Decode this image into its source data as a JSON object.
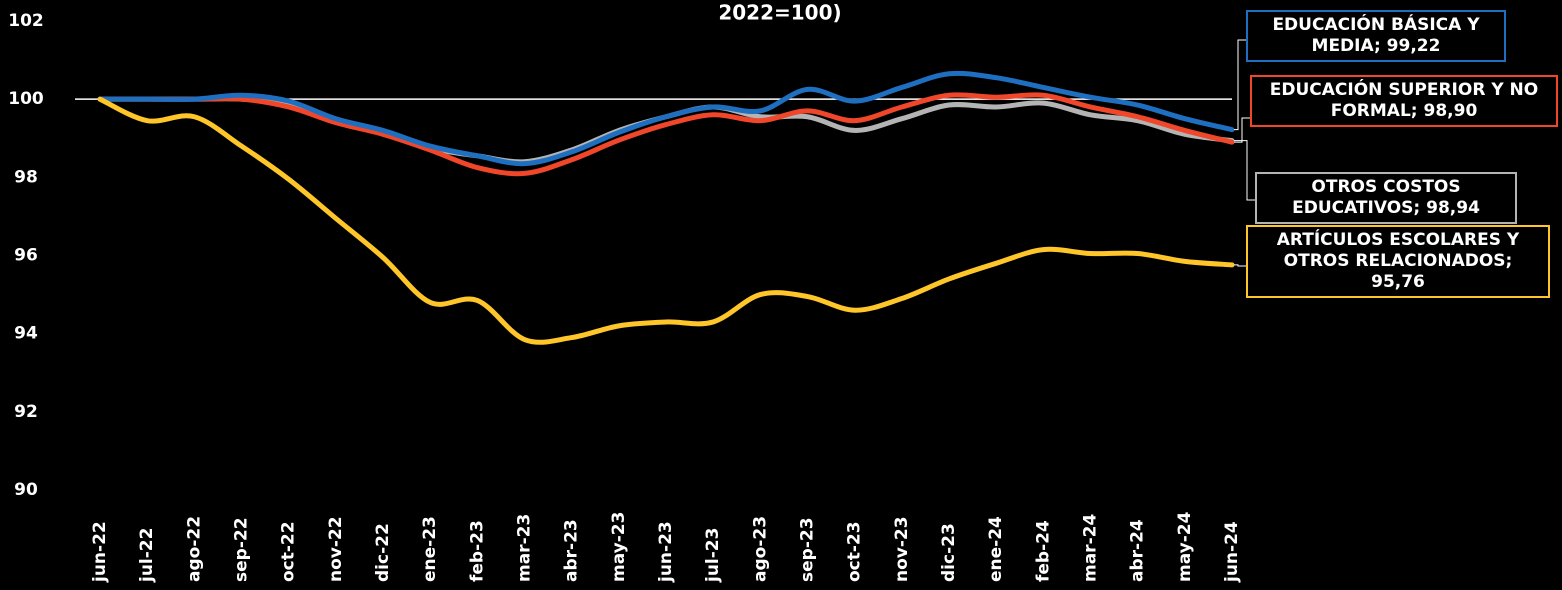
{
  "chart_data": {
    "type": "line",
    "title": "2022=100)",
    "categories": [
      "jun-22",
      "jul-22",
      "ago-22",
      "sep-22",
      "oct-22",
      "nov-22",
      "dic-22",
      "ene-23",
      "feb-23",
      "mar-23",
      "abr-23",
      "may-23",
      "jun-23",
      "jul-23",
      "ago-23",
      "sep-23",
      "oct-23",
      "nov-23",
      "dic-23",
      "ene-24",
      "feb-24",
      "mar-24",
      "abr-24",
      "may-24",
      "jun-24"
    ],
    "series": [
      {
        "name": "EDUCACIÓN BÁSICA Y MEDIA;  99,22",
        "color": "#1f6fc0",
        "values": [
          100,
          100,
          100,
          100.1,
          99.95,
          99.5,
          99.2,
          98.8,
          98.55,
          98.35,
          98.65,
          99.15,
          99.55,
          99.8,
          99.7,
          100.25,
          99.95,
          100.3,
          100.65,
          100.55,
          100.3,
          100.05,
          99.85,
          99.5,
          99.22
        ]
      },
      {
        "name": "EDUCACIÓN SUPERIOR Y NO FORMAL;  98,90",
        "color": "#f0462a",
        "values": [
          100,
          100,
          100,
          100,
          99.8,
          99.4,
          99.1,
          98.7,
          98.25,
          98.1,
          98.45,
          98.95,
          99.35,
          99.6,
          99.45,
          99.7,
          99.45,
          99.8,
          100.1,
          100.05,
          100.1,
          99.8,
          99.55,
          99.2,
          98.9
        ]
      },
      {
        "name": "OTROS COSTOS EDUCATIVOS;  98,94",
        "color": "#b4b4b4",
        "values": [
          100,
          100,
          100,
          100,
          99.85,
          99.45,
          99.15,
          98.75,
          98.55,
          98.4,
          98.7,
          99.2,
          99.55,
          99.8,
          99.55,
          99.55,
          99.2,
          99.5,
          99.85,
          99.8,
          99.9,
          99.6,
          99.45,
          99.1,
          98.94
        ]
      },
      {
        "name": "ARTÍCULOS ESCOLARES Y OTROS RELACIONADOS;  95,76",
        "color": "#ffc629",
        "values": [
          100,
          99.45,
          99.55,
          98.8,
          97.95,
          96.95,
          95.95,
          94.8,
          94.85,
          93.85,
          93.9,
          94.2,
          94.3,
          94.3,
          95.0,
          94.95,
          94.6,
          94.9,
          95.4,
          95.8,
          96.15,
          96.05,
          96.05,
          95.85,
          95.76
        ]
      }
    ],
    "ylim": [
      90,
      102
    ],
    "yticks": [
      90,
      92,
      94,
      96,
      98,
      100,
      102
    ],
    "reference_line": 100,
    "grid": false
  }
}
